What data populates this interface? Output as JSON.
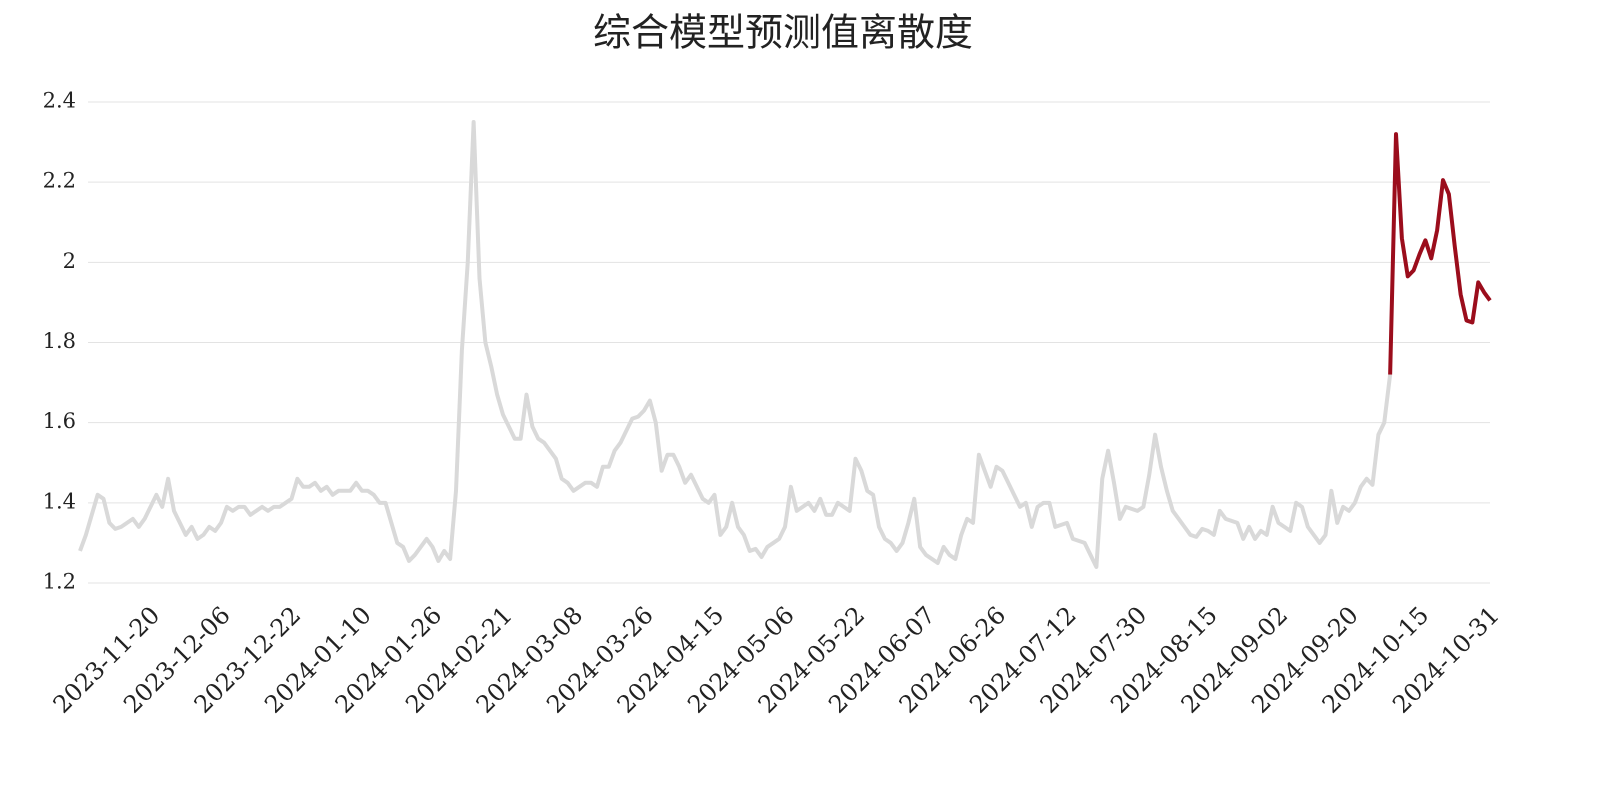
{
  "chart_data": {
    "type": "line",
    "title": "综合模型预测值离散度",
    "categories": [
      null,
      null,
      null,
      null,
      null,
      null,
      null,
      null,
      null,
      null,
      null,
      null,
      "2023-11-20",
      null,
      null,
      null,
      null,
      null,
      null,
      null,
      null,
      null,
      null,
      null,
      "2023-12-06",
      null,
      null,
      null,
      null,
      null,
      null,
      null,
      null,
      null,
      null,
      null,
      "2023-12-22",
      null,
      null,
      null,
      null,
      null,
      null,
      null,
      null,
      null,
      null,
      null,
      "2024-01-10",
      null,
      null,
      null,
      null,
      null,
      null,
      null,
      null,
      null,
      null,
      null,
      "2024-01-26",
      null,
      null,
      null,
      null,
      null,
      null,
      null,
      null,
      null,
      null,
      null,
      "2024-02-21",
      null,
      null,
      null,
      null,
      null,
      null,
      null,
      null,
      null,
      null,
      null,
      "2024-03-08",
      null,
      null,
      null,
      null,
      null,
      null,
      null,
      null,
      null,
      null,
      null,
      "2024-03-26",
      null,
      null,
      null,
      null,
      null,
      null,
      null,
      null,
      null,
      null,
      null,
      "2024-04-15",
      null,
      null,
      null,
      null,
      null,
      null,
      null,
      null,
      null,
      null,
      null,
      "2024-05-06",
      null,
      null,
      null,
      null,
      null,
      null,
      null,
      null,
      null,
      null,
      null,
      "2024-05-22",
      null,
      null,
      null,
      null,
      null,
      null,
      null,
      null,
      null,
      null,
      null,
      "2024-06-07",
      null,
      null,
      null,
      null,
      null,
      null,
      null,
      null,
      null,
      null,
      null,
      "2024-06-26",
      null,
      null,
      null,
      null,
      null,
      null,
      null,
      null,
      null,
      null,
      null,
      "2024-07-12",
      null,
      null,
      null,
      null,
      null,
      null,
      null,
      null,
      null,
      null,
      null,
      "2024-07-30",
      null,
      null,
      null,
      null,
      null,
      null,
      null,
      null,
      null,
      null,
      null,
      "2024-08-15",
      null,
      null,
      null,
      null,
      null,
      null,
      null,
      null,
      null,
      null,
      null,
      "2024-09-02",
      null,
      null,
      null,
      null,
      null,
      null,
      null,
      null,
      null,
      null,
      null,
      "2024-09-20",
      null,
      null,
      null,
      null,
      null,
      null,
      null,
      null,
      null,
      null,
      null,
      "2024-10-15",
      null,
      null,
      null,
      null,
      null,
      null,
      null,
      null,
      null,
      null,
      null,
      "2024-10-31"
    ],
    "series": [
      {
        "color": "#d9d9d9",
        "values": [
          1.28,
          1.32,
          1.37,
          1.42,
          1.41,
          1.35,
          1.335,
          1.34,
          1.35,
          1.36,
          1.34,
          1.36,
          1.39,
          1.42,
          1.39,
          1.46,
          1.38,
          1.35,
          1.32,
          1.34,
          1.31,
          1.32,
          1.34,
          1.33,
          1.35,
          1.39,
          1.38,
          1.39,
          1.39,
          1.37,
          1.38,
          1.39,
          1.38,
          1.39,
          1.39,
          1.4,
          1.41,
          1.46,
          1.44,
          1.44,
          1.45,
          1.43,
          1.44,
          1.42,
          1.43,
          1.43,
          1.43,
          1.45,
          1.43,
          1.43,
          1.42,
          1.4,
          1.4,
          1.35,
          1.3,
          1.29,
          1.255,
          1.27,
          1.29,
          1.31,
          1.29,
          1.255,
          1.28,
          1.26,
          1.43,
          1.78,
          2.0,
          2.35,
          1.96,
          1.8,
          1.74,
          1.67,
          1.62,
          1.59,
          1.56,
          1.56,
          1.67,
          1.59,
          1.56,
          1.55,
          1.53,
          1.51,
          1.46,
          1.45,
          1.43,
          1.44,
          1.45,
          1.45,
          1.44,
          1.49,
          1.49,
          1.53,
          1.55,
          1.58,
          1.61,
          1.615,
          1.63,
          1.655,
          1.6,
          1.48,
          1.52,
          1.52,
          1.49,
          1.45,
          1.47,
          1.44,
          1.41,
          1.4,
          1.42,
          1.32,
          1.34,
          1.4,
          1.34,
          1.32,
          1.28,
          1.285,
          1.265,
          1.29,
          1.3,
          1.31,
          1.34,
          1.44,
          1.38,
          1.39,
          1.4,
          1.38,
          1.41,
          1.37,
          1.37,
          1.4,
          1.39,
          1.38,
          1.51,
          1.48,
          1.43,
          1.42,
          1.34,
          1.31,
          1.3,
          1.28,
          1.3,
          1.35,
          1.41,
          1.29,
          1.27,
          1.26,
          1.25,
          1.29,
          1.27,
          1.26,
          1.32,
          1.36,
          1.35,
          1.52,
          1.48,
          1.44,
          1.49,
          1.48,
          1.45,
          1.42,
          1.39,
          1.4,
          1.34,
          1.39,
          1.4,
          1.4,
          1.34,
          1.345,
          1.35,
          1.31,
          1.305,
          1.3,
          1.27,
          1.24,
          1.46,
          1.53,
          1.45,
          1.36,
          1.39,
          1.385,
          1.38,
          1.39,
          1.47,
          1.57,
          1.49,
          1.43,
          1.38,
          1.36,
          1.34,
          1.32,
          1.315,
          1.335,
          1.33,
          1.32,
          1.38,
          1.36,
          1.355,
          1.35,
          1.31,
          1.34,
          1.31,
          1.33,
          1.32,
          1.39,
          1.35,
          1.34,
          1.33,
          1.4,
          1.39,
          1.34,
          1.32,
          1.3,
          1.32,
          1.43,
          1.35,
          1.39,
          1.38,
          1.4,
          1.44,
          1.46,
          1.445,
          1.57,
          1.6,
          1.72,
          null,
          null,
          null,
          null,
          null,
          null,
          null,
          null,
          null,
          null,
          null,
          null,
          null,
          null,
          null,
          null,
          null
        ]
      },
      {
        "color": "#9b0d1c",
        "values": [
          null,
          null,
          null,
          null,
          null,
          null,
          null,
          null,
          null,
          null,
          null,
          null,
          null,
          null,
          null,
          null,
          null,
          null,
          null,
          null,
          null,
          null,
          null,
          null,
          null,
          null,
          null,
          null,
          null,
          null,
          null,
          null,
          null,
          null,
          null,
          null,
          null,
          null,
          null,
          null,
          null,
          null,
          null,
          null,
          null,
          null,
          null,
          null,
          null,
          null,
          null,
          null,
          null,
          null,
          null,
          null,
          null,
          null,
          null,
          null,
          null,
          null,
          null,
          null,
          null,
          null,
          null,
          null,
          null,
          null,
          null,
          null,
          null,
          null,
          null,
          null,
          null,
          null,
          null,
          null,
          null,
          null,
          null,
          null,
          null,
          null,
          null,
          null,
          null,
          null,
          null,
          null,
          null,
          null,
          null,
          null,
          null,
          null,
          null,
          null,
          null,
          null,
          null,
          null,
          null,
          null,
          null,
          null,
          null,
          null,
          null,
          null,
          null,
          null,
          null,
          null,
          null,
          null,
          null,
          null,
          null,
          null,
          null,
          null,
          null,
          null,
          null,
          null,
          null,
          null,
          null,
          null,
          null,
          null,
          null,
          null,
          null,
          null,
          null,
          null,
          null,
          null,
          null,
          null,
          null,
          null,
          null,
          null,
          null,
          null,
          null,
          null,
          null,
          null,
          null,
          null,
          null,
          null,
          null,
          null,
          null,
          null,
          null,
          null,
          null,
          null,
          null,
          null,
          null,
          null,
          null,
          null,
          null,
          null,
          null,
          null,
          null,
          null,
          null,
          null,
          null,
          null,
          null,
          null,
          null,
          null,
          null,
          null,
          null,
          null,
          null,
          null,
          null,
          null,
          null,
          null,
          null,
          null,
          null,
          null,
          null,
          null,
          null,
          null,
          null,
          null,
          null,
          null,
          null,
          null,
          null,
          null,
          null,
          null,
          null,
          null,
          null,
          null,
          null,
          null,
          null,
          null,
          null,
          1.72,
          2.32,
          2.06,
          1.965,
          1.98,
          2.02,
          2.055,
          2.01,
          2.08,
          2.205,
          2.17,
          2.04,
          1.92,
          1.855,
          1.85,
          1.95,
          1.925,
          1.905
        ]
      }
    ],
    "ylim": [
      1.2,
      2.4
    ],
    "yticks": [
      1.2,
      1.4,
      1.6,
      1.8,
      2,
      2.2,
      2.4
    ],
    "grid": true
  }
}
